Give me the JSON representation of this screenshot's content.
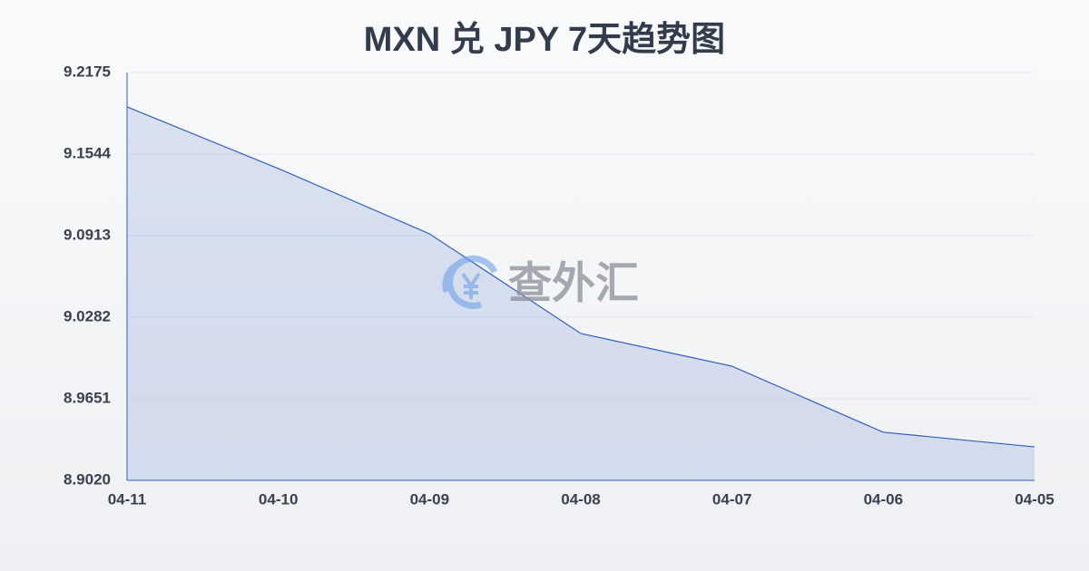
{
  "chart_data": {
    "type": "area",
    "title": "MXN 兑 JPY 7天趋势图",
    "watermark": "查外汇",
    "categories": [
      "04-11",
      "04-10",
      "04-09",
      "04-08",
      "04-07",
      "04-06",
      "04-05"
    ],
    "values": [
      9.1909,
      9.1432,
      9.0927,
      9.0156,
      8.9903,
      8.9392,
      8.9279
    ],
    "color": "#2f5fbf",
    "ylim": [
      8.902,
      9.2175
    ],
    "yticks": [
      {
        "value": 8.902,
        "label": "8.9020"
      },
      8.9651,
      9.0282,
      9.0913,
      9.1544,
      9.2175
    ],
    "grid": true
  }
}
